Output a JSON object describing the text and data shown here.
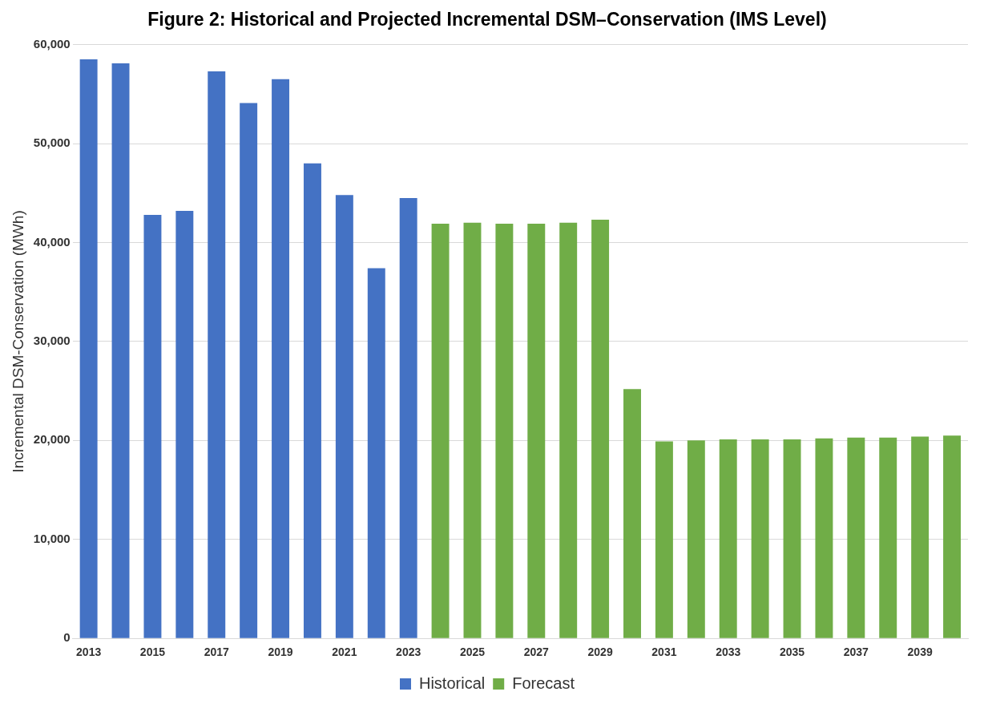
{
  "chart_data": {
    "type": "bar",
    "title": "Figure 2: Historical and Projected Incremental DSM–Conservation (IMS Level)",
    "ylabel": "Incremental DSM-Conservation (MWh)",
    "categories": [
      "2013",
      null,
      "2015",
      null,
      "2017",
      null,
      "2019",
      null,
      "2021",
      null,
      "2023",
      null,
      "2025",
      null,
      "2027",
      null,
      "2029",
      null,
      "2031",
      null,
      "2033",
      null,
      "2035",
      null,
      "2037",
      null,
      "2039",
      null
    ],
    "series": [
      {
        "name": "Historical",
        "color": "#4472c4",
        "values": [
          58500,
          58100,
          42800,
          43200,
          57300,
          54100,
          56500,
          48000,
          44800,
          37400,
          44500,
          null,
          null,
          null,
          null,
          null,
          null,
          null,
          null,
          null,
          null,
          null,
          null,
          null,
          null,
          null,
          null,
          null
        ]
      },
      {
        "name": "Forecast",
        "color": "#70ad47",
        "values": [
          null,
          null,
          null,
          null,
          null,
          null,
          null,
          null,
          null,
          null,
          null,
          41900,
          42000,
          41900,
          41900,
          42000,
          42300,
          25200,
          19900,
          20000,
          20100,
          20100,
          20100,
          20200,
          20300,
          20300,
          20400,
          20500
        ]
      }
    ],
    "ylim": [
      0,
      60000
    ],
    "yticks": [
      {
        "value": 0,
        "label": "0"
      },
      {
        "value": 10000,
        "label": "10,000"
      },
      {
        "value": 20000,
        "label": "20,000"
      },
      {
        "value": 30000,
        "label": "30,000"
      },
      {
        "value": 40000,
        "label": "40,000"
      },
      {
        "value": 50000,
        "label": "50,000"
      },
      {
        "value": 60000,
        "label": "60,000"
      }
    ],
    "grid": "y",
    "legend": "bottom"
  }
}
